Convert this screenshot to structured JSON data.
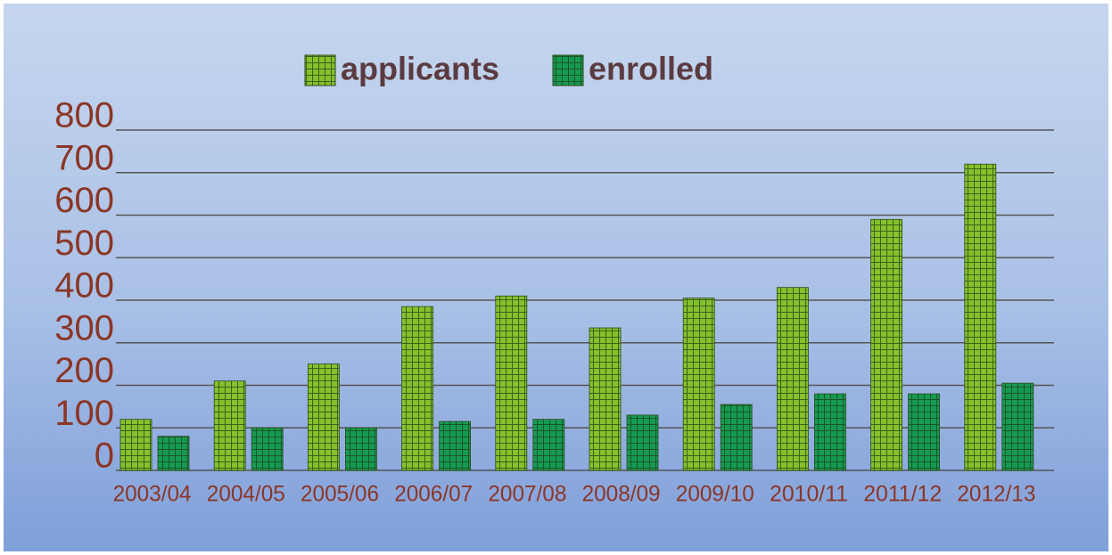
{
  "chart_data": {
    "type": "bar",
    "categories": [
      "2003/04",
      "2004/05",
      "2005/06",
      "2006/07",
      "2007/08",
      "2008/09",
      "2009/10",
      "2010/11",
      "2011/12",
      "2012/13"
    ],
    "series": [
      {
        "name": "applicants",
        "color": "#86c02c",
        "values": [
          120,
          210,
          250,
          385,
          410,
          335,
          405,
          430,
          590,
          720
        ]
      },
      {
        "name": "enrolled",
        "color": "#169a52",
        "values": [
          80,
          100,
          100,
          115,
          120,
          130,
          155,
          180,
          180,
          205
        ]
      }
    ],
    "ylim": [
      0,
      800
    ],
    "yticks": [
      0,
      100,
      200,
      300,
      400,
      500,
      600,
      700,
      800
    ],
    "grid": true
  }
}
